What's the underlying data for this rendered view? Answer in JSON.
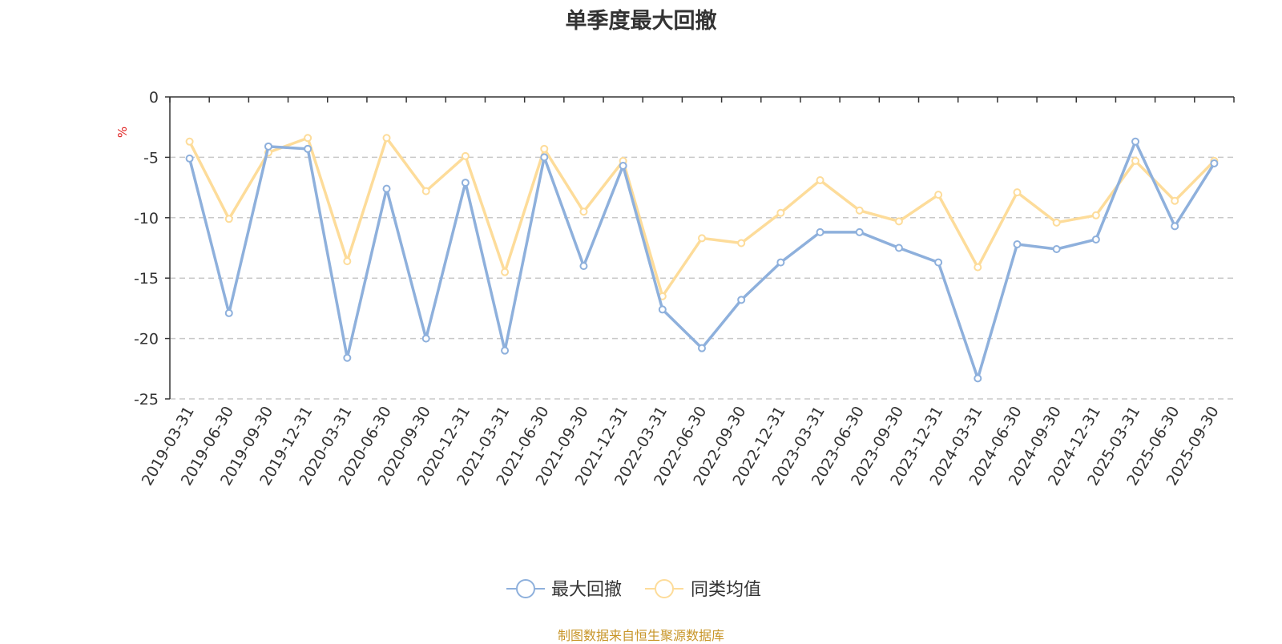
{
  "chart_data": {
    "type": "line",
    "title": "单季度最大回撤",
    "xlabel": "",
    "ylabel": "%",
    "ylim": [
      -25,
      0
    ],
    "yticks": [
      0,
      -5,
      -10,
      -15,
      -20,
      -25
    ],
    "grid": true,
    "legend_position": "bottom-center",
    "categories": [
      "2019-03-31",
      "2019-06-30",
      "2019-09-30",
      "2019-12-31",
      "2020-03-31",
      "2020-06-30",
      "2020-09-30",
      "2020-12-31",
      "2021-03-31",
      "2021-06-30",
      "2021-09-30",
      "2021-12-31",
      "2022-03-31",
      "2022-06-30",
      "2022-09-30",
      "2022-12-31",
      "2023-03-31",
      "2023-06-30",
      "2023-09-30",
      "2023-12-31",
      "2024-03-31",
      "2024-06-30",
      "2024-09-30",
      "2024-12-31",
      "2025-03-31",
      "2025-06-30",
      "2025-09-30"
    ],
    "series": [
      {
        "name": "最大回撤",
        "color": "#8eb0dc",
        "values": [
          -5.1,
          -17.9,
          -4.1,
          -4.3,
          -21.6,
          -7.6,
          -20.0,
          -7.1,
          -21.0,
          -5.0,
          -14.0,
          -5.7,
          -17.6,
          -20.8,
          -16.8,
          -13.7,
          -11.2,
          -11.2,
          -12.5,
          -13.7,
          -23.3,
          -12.2,
          -12.6,
          -11.8,
          -3.7,
          -10.7,
          -5.5
        ]
      },
      {
        "name": "同类均值",
        "color": "#fddc9a",
        "values": [
          -3.7,
          -10.1,
          -4.6,
          -3.4,
          -13.6,
          -3.4,
          -7.8,
          -4.9,
          -14.5,
          -4.3,
          -9.5,
          -5.3,
          -16.5,
          -11.7,
          -12.1,
          -9.6,
          -6.9,
          -9.4,
          -10.3,
          -8.1,
          -14.1,
          -7.9,
          -10.4,
          -9.8,
          -5.3,
          -8.6,
          -5.3
        ]
      }
    ]
  },
  "source_note": "制图数据来自恒生聚源数据库"
}
